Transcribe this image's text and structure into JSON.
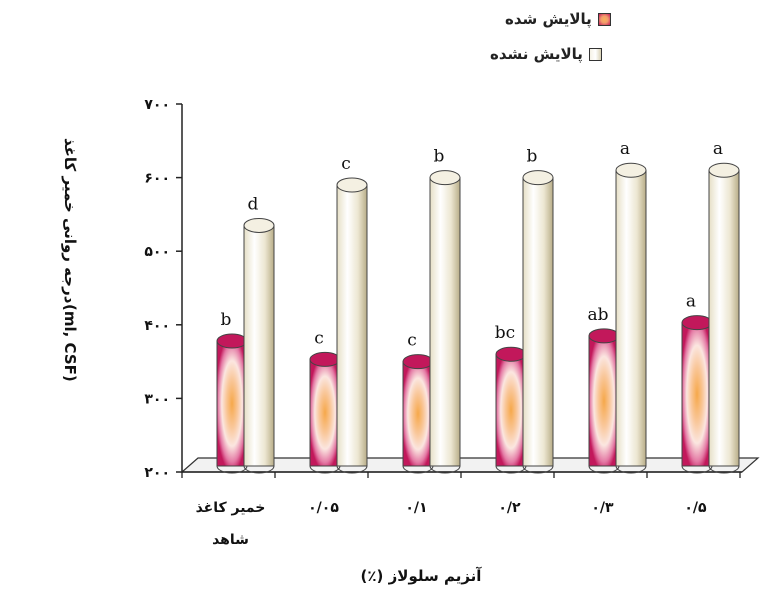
{
  "chart_data": {
    "type": "bar",
    "categories": [
      "خمیر کاغذ شاهد",
      "۰/۰۵",
      "۰/۱",
      "۰/۲",
      "۰/۳",
      "۰/۵"
    ],
    "series": [
      {
        "name": "پالایش شده",
        "values": [
          378,
          353,
          350,
          360,
          385,
          403
        ],
        "labels": [
          "b",
          "c",
          "c",
          "bc",
          "ab",
          "a"
        ],
        "color": "#c2185b"
      },
      {
        "name": "پالایش نشده",
        "values": [
          535,
          590,
          600,
          600,
          610,
          610
        ],
        "labels": [
          "d",
          "c",
          "b",
          "b",
          "a",
          "a"
        ],
        "color": "#ece7d5"
      }
    ],
    "yticks": [
      "۲۰۰",
      "۳۰۰",
      "۴۰۰",
      "۵۰۰",
      "۶۰۰",
      "۷۰۰"
    ],
    "ylim": [
      200,
      700
    ],
    "ylabel": [
      "درجه روانی خمیر کاغذ",
      "(ml, CSF)"
    ],
    "xlabel": "آنزیم سلولاز (٪)",
    "legend_position": "top-right"
  }
}
